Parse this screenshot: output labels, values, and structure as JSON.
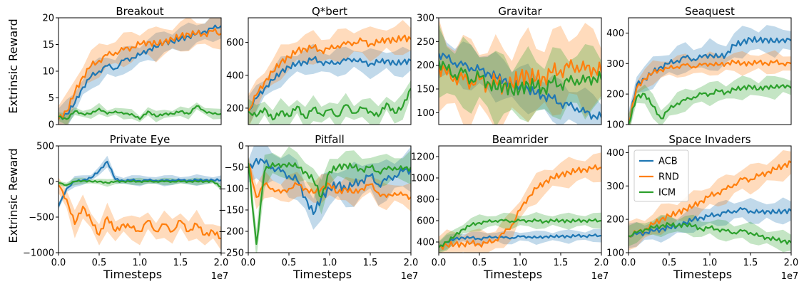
{
  "colors": {
    "ACB": "#1f77b4",
    "RND": "#ff7f0e",
    "ICM": "#2ca02c"
  },
  "shared": {
    "ylabel": "Extrinsic Reward",
    "xlabel": "Timesteps",
    "x_offset_label": "1e7",
    "x_ticks": [
      "0.0",
      "0.5",
      "1.0",
      "1.5",
      "2.0"
    ]
  },
  "legend": {
    "panel": 7,
    "placement": "upper-left",
    "entries": [
      "ACB",
      "RND",
      "ICM"
    ]
  },
  "chart_data": [
    {
      "type": "line",
      "title": "Breakout",
      "xlim": [
        0,
        20000000.0
      ],
      "ylim": [
        0,
        20
      ],
      "yticks": [
        0,
        5,
        10,
        15,
        20
      ],
      "ytick_labels": [
        "0",
        "5",
        "10",
        "15",
        "20"
      ],
      "x": [
        0,
        1000000.0,
        2000000.0,
        3000000.0,
        4000000.0,
        5000000.0,
        6000000.0,
        7000000.0,
        8000000.0,
        9000000.0,
        10000000.0,
        11000000.0,
        12000000.0,
        13000000.0,
        14000000.0,
        15000000.0,
        16000000.0,
        17000000.0,
        18000000.0,
        19000000.0,
        20000000.0
      ],
      "series": [
        {
          "name": "ACB",
          "values": [
            1,
            2,
            4,
            7,
            9,
            10,
            11,
            10.5,
            12,
            12.5,
            13,
            14,
            14.5,
            15.5,
            15.5,
            16,
            16.5,
            17,
            17.5,
            18,
            18.5
          ],
          "band": 2
        },
        {
          "name": "RND",
          "values": [
            1,
            2.5,
            6,
            9,
            11,
            12,
            13,
            13.5,
            14,
            14.5,
            15,
            15.5,
            15,
            15.5,
            16,
            16.5,
            17,
            17,
            17,
            17.5,
            17
          ],
          "band": 2.5
        },
        {
          "name": "ICM",
          "values": [
            1.5,
            1,
            2.5,
            2,
            2,
            3,
            2,
            2.5,
            2,
            2,
            1,
            2.5,
            1.5,
            2,
            2,
            2.5,
            2,
            3.5,
            2.5,
            2,
            2
          ],
          "band": 0.8
        }
      ]
    },
    {
      "type": "line",
      "title": "Q*bert",
      "xlim": [
        0,
        20000000.0
      ],
      "ylim": [
        100,
        750
      ],
      "yticks": [
        200,
        400,
        600
      ],
      "ytick_labels": [
        "200",
        "400",
        "600"
      ],
      "x": [
        0,
        1000000.0,
        2000000.0,
        3000000.0,
        4000000.0,
        5000000.0,
        6000000.0,
        7000000.0,
        8000000.0,
        9000000.0,
        10000000.0,
        11000000.0,
        12000000.0,
        13000000.0,
        14000000.0,
        15000000.0,
        16000000.0,
        17000000.0,
        18000000.0,
        19000000.0,
        20000000.0
      ],
      "series": [
        {
          "name": "ACB",
          "values": [
            180,
            260,
            320,
            370,
            420,
            450,
            470,
            480,
            500,
            480,
            470,
            480,
            490,
            500,
            480,
            470,
            480,
            490,
            470,
            480,
            490
          ],
          "band": 70
        },
        {
          "name": "RND",
          "values": [
            180,
            280,
            360,
            420,
            480,
            510,
            550,
            560,
            570,
            550,
            560,
            580,
            590,
            600,
            610,
            590,
            600,
            620,
            610,
            630,
            620
          ],
          "band": 80
        },
        {
          "name": "ICM",
          "values": [
            180,
            150,
            200,
            130,
            180,
            150,
            210,
            140,
            200,
            160,
            190,
            150,
            220,
            170,
            200,
            180,
            150,
            230,
            170,
            210,
            320
          ],
          "band": 60
        }
      ]
    },
    {
      "type": "line",
      "title": "Gravitar",
      "xlim": [
        0,
        20000000.0
      ],
      "ylim": [
        75,
        300
      ],
      "yticks": [
        100,
        150,
        200,
        250,
        300
      ],
      "ytick_labels": [
        "100",
        "150",
        "200",
        "250",
        "300"
      ],
      "x": [
        0,
        1000000.0,
        2000000.0,
        3000000.0,
        4000000.0,
        5000000.0,
        6000000.0,
        7000000.0,
        8000000.0,
        9000000.0,
        10000000.0,
        11000000.0,
        12000000.0,
        13000000.0,
        14000000.0,
        15000000.0,
        16000000.0,
        17000000.0,
        18000000.0,
        19000000.0,
        20000000.0
      ],
      "series": [
        {
          "name": "ACB",
          "values": [
            225,
            215,
            205,
            200,
            195,
            190,
            185,
            175,
            170,
            160,
            155,
            150,
            140,
            135,
            130,
            120,
            115,
            110,
            100,
            95,
            90
          ],
          "band": 40
        },
        {
          "name": "RND",
          "values": [
            200,
            180,
            175,
            170,
            165,
            170,
            160,
            165,
            155,
            160,
            175,
            180,
            170,
            175,
            185,
            190,
            195,
            200,
            190,
            195,
            185
          ],
          "band": 75
        },
        {
          "name": "ICM",
          "values": [
            210,
            190,
            180,
            185,
            170,
            175,
            165,
            150,
            160,
            145,
            150,
            160,
            155,
            150,
            165,
            160,
            165,
            170,
            165,
            175,
            170
          ],
          "band": 60
        }
      ]
    },
    {
      "type": "line",
      "title": "Seaquest",
      "xlim": [
        0,
        20000000.0
      ],
      "ylim": [
        100,
        450
      ],
      "yticks": [
        100,
        200,
        300,
        400
      ],
      "ytick_labels": [
        "100",
        "200",
        "300",
        "400"
      ],
      "x": [
        0,
        1000000.0,
        2000000.0,
        3000000.0,
        4000000.0,
        5000000.0,
        6000000.0,
        7000000.0,
        8000000.0,
        9000000.0,
        10000000.0,
        11000000.0,
        12000000.0,
        13000000.0,
        14000000.0,
        15000000.0,
        16000000.0,
        17000000.0,
        18000000.0,
        19000000.0,
        20000000.0
      ],
      "series": [
        {
          "name": "ACB",
          "values": [
            100,
            230,
            250,
            270,
            290,
            300,
            310,
            320,
            315,
            320,
            330,
            320,
            330,
            360,
            370,
            380,
            375,
            380,
            370,
            380,
            375
          ],
          "band": 40
        },
        {
          "name": "RND",
          "values": [
            100,
            220,
            250,
            270,
            280,
            285,
            290,
            295,
            290,
            295,
            300,
            295,
            300,
            305,
            300,
            300,
            305,
            300,
            305,
            300,
            300
          ],
          "band": 30
        },
        {
          "name": "ICM",
          "values": [
            100,
            190,
            200,
            160,
            120,
            150,
            170,
            180,
            190,
            200,
            200,
            210,
            205,
            215,
            220,
            225,
            215,
            225,
            220,
            230,
            220
          ],
          "band": 30
        }
      ]
    },
    {
      "type": "line",
      "title": "Private Eye",
      "xlim": [
        0,
        20000000.0
      ],
      "ylim": [
        -1000,
        500
      ],
      "yticks": [
        -1000,
        -500,
        0,
        500
      ],
      "ytick_labels": [
        "−1000",
        "−500",
        "0",
        "500"
      ],
      "x": [
        0,
        1000000.0,
        2000000.0,
        3000000.0,
        4000000.0,
        5000000.0,
        6000000.0,
        7000000.0,
        8000000.0,
        9000000.0,
        10000000.0,
        11000000.0,
        12000000.0,
        13000000.0,
        14000000.0,
        15000000.0,
        16000000.0,
        17000000.0,
        18000000.0,
        19000000.0,
        20000000.0
      ],
      "series": [
        {
          "name": "ACB",
          "values": [
            -350,
            -100,
            0,
            20,
            50,
            150,
            280,
            30,
            10,
            20,
            10,
            20,
            15,
            10,
            20,
            20,
            15,
            20,
            20,
            20,
            20
          ],
          "band": 60
        },
        {
          "name": "RND",
          "values": [
            -50,
            -250,
            -600,
            -350,
            -550,
            -750,
            -500,
            -700,
            -600,
            -650,
            -700,
            -550,
            -700,
            -600,
            -700,
            -550,
            -700,
            -600,
            -750,
            -700,
            -800
          ],
          "band": 150
        },
        {
          "name": "ICM",
          "values": [
            -20,
            -50,
            0,
            10,
            0,
            0,
            -20,
            0,
            0,
            0,
            0,
            0,
            0,
            0,
            0,
            0,
            0,
            0,
            0,
            0,
            -80
          ],
          "band": 40
        }
      ]
    },
    {
      "type": "line",
      "title": "Pitfall",
      "xlim": [
        0,
        20000000.0
      ],
      "ylim": [
        -250,
        0
      ],
      "yticks": [
        -250,
        -200,
        -150,
        -100,
        -50,
        0
      ],
      "ytick_labels": [
        "−250",
        "−200",
        "−150",
        "−100",
        "−50",
        "0"
      ],
      "x": [
        0,
        1000000.0,
        2000000.0,
        3000000.0,
        4000000.0,
        5000000.0,
        6000000.0,
        7000000.0,
        8000000.0,
        9000000.0,
        10000000.0,
        11000000.0,
        12000000.0,
        13000000.0,
        14000000.0,
        15000000.0,
        16000000.0,
        17000000.0,
        18000000.0,
        19000000.0,
        20000000.0
      ],
      "series": [
        {
          "name": "ACB",
          "values": [
            -60,
            -30,
            -40,
            -50,
            -60,
            -70,
            -80,
            -120,
            -160,
            -120,
            -100,
            -90,
            -100,
            -90,
            -80,
            -70,
            -90,
            -80,
            -70,
            -60,
            -55
          ],
          "band": 40
        },
        {
          "name": "RND",
          "values": [
            -40,
            -120,
            -90,
            -100,
            -110,
            -100,
            -90,
            -100,
            -110,
            -100,
            -90,
            -110,
            -100,
            -110,
            -100,
            -90,
            -110,
            -120,
            -110,
            -115,
            -120
          ],
          "band": 25
        },
        {
          "name": "ICM",
          "values": [
            -40,
            -230,
            -60,
            -40,
            -50,
            -40,
            -50,
            -60,
            -80,
            -120,
            -60,
            -50,
            -45,
            -50,
            -55,
            -50,
            -60,
            -55,
            -50,
            -55,
            -50
          ],
          "band": 30
        }
      ]
    },
    {
      "type": "line",
      "title": "Beamrider",
      "xlim": [
        0,
        20000000.0
      ],
      "ylim": [
        300,
        1300
      ],
      "yticks": [
        400,
        600,
        800,
        1000,
        1200
      ],
      "ytick_labels": [
        "400",
        "600",
        "800",
        "1000",
        "1200"
      ],
      "x": [
        0,
        1000000.0,
        2000000.0,
        3000000.0,
        4000000.0,
        5000000.0,
        6000000.0,
        7000000.0,
        8000000.0,
        9000000.0,
        10000000.0,
        11000000.0,
        12000000.0,
        13000000.0,
        14000000.0,
        15000000.0,
        16000000.0,
        17000000.0,
        18000000.0,
        19000000.0,
        20000000.0
      ],
      "series": [
        {
          "name": "ACB",
          "values": [
            350,
            400,
            430,
            440,
            440,
            430,
            440,
            450,
            440,
            440,
            450,
            450,
            440,
            450,
            450,
            455,
            450,
            460,
            455,
            460,
            460
          ],
          "band": 50
        },
        {
          "name": "RND",
          "values": [
            350,
            370,
            380,
            380,
            390,
            380,
            390,
            420,
            480,
            560,
            700,
            820,
            900,
            960,
            1000,
            1030,
            1050,
            1070,
            1080,
            1090,
            1100
          ],
          "band": 110
        },
        {
          "name": "ICM",
          "values": [
            350,
            400,
            460,
            520,
            560,
            580,
            590,
            600,
            600,
            595,
            600,
            600,
            600,
            590,
            600,
            600,
            595,
            600,
            600,
            600,
            600
          ],
          "band": 60
        }
      ]
    },
    {
      "type": "line",
      "title": "Space Invaders",
      "xlim": [
        0,
        20000000.0
      ],
      "ylim": [
        100,
        420
      ],
      "yticks": [
        100,
        200,
        300,
        400
      ],
      "ytick_labels": [
        "100",
        "200",
        "300",
        "400"
      ],
      "x": [
        0,
        1000000.0,
        2000000.0,
        3000000.0,
        4000000.0,
        5000000.0,
        6000000.0,
        7000000.0,
        8000000.0,
        9000000.0,
        10000000.0,
        11000000.0,
        12000000.0,
        13000000.0,
        14000000.0,
        15000000.0,
        16000000.0,
        17000000.0,
        18000000.0,
        19000000.0,
        20000000.0
      ],
      "series": [
        {
          "name": "ACB",
          "values": [
            150,
            155,
            160,
            165,
            170,
            175,
            180,
            190,
            200,
            205,
            210,
            215,
            220,
            225,
            230,
            225,
            220,
            225,
            220,
            225,
            225
          ],
          "band": 30
        },
        {
          "name": "RND",
          "values": [
            150,
            160,
            170,
            185,
            200,
            210,
            220,
            230,
            240,
            255,
            270,
            280,
            290,
            305,
            320,
            320,
            330,
            340,
            350,
            360,
            370
          ],
          "band": 35
        },
        {
          "name": "ICM",
          "values": [
            150,
            160,
            170,
            175,
            180,
            185,
            180,
            185,
            180,
            170,
            175,
            170,
            165,
            160,
            165,
            160,
            150,
            145,
            140,
            135,
            130
          ],
          "band": 25
        }
      ]
    }
  ]
}
